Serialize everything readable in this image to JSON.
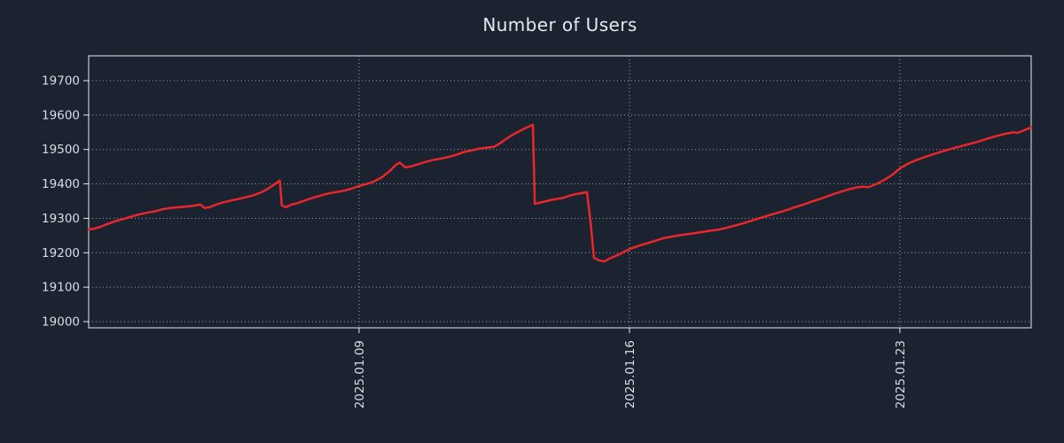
{
  "chart_data": {
    "type": "line",
    "title": "Number of Users",
    "xlabel": "",
    "ylabel": "",
    "legend": "none",
    "grid": "dotted",
    "x_unit": "day of month, January 2025",
    "x_range": [
      2.0,
      26.4
    ],
    "y_range": [
      18982,
      19772
    ],
    "x_ticks": [
      {
        "day": 9,
        "label": "2025.01.09"
      },
      {
        "day": 16,
        "label": "2025.01.16"
      },
      {
        "day": 23,
        "label": "2025.01.23"
      }
    ],
    "y_ticks": [
      {
        "value": 19000,
        "label": "19000"
      },
      {
        "value": 19100,
        "label": "19100"
      },
      {
        "value": 19200,
        "label": "19200"
      },
      {
        "value": 19300,
        "label": "19300"
      },
      {
        "value": 19400,
        "label": "19400"
      },
      {
        "value": 19500,
        "label": "19500"
      },
      {
        "value": 19600,
        "label": "19600"
      },
      {
        "value": 19700,
        "label": "19700"
      }
    ],
    "colors": {
      "background": "#1b2330",
      "axis": "#e7eaee",
      "grid": "#9aa2ad",
      "tick_text": "#d9dee6",
      "title_text": "#e4e8ee",
      "line": "#e8262b"
    },
    "series": [
      {
        "name": "users",
        "color": "#e8262b",
        "points": [
          [
            2.0,
            19268
          ],
          [
            2.15,
            19270
          ],
          [
            2.3,
            19275
          ],
          [
            2.5,
            19284
          ],
          [
            2.7,
            19292
          ],
          [
            2.9,
            19298
          ],
          [
            3.1,
            19305
          ],
          [
            3.3,
            19311
          ],
          [
            3.5,
            19316
          ],
          [
            3.7,
            19320
          ],
          [
            3.9,
            19326
          ],
          [
            4.1,
            19330
          ],
          [
            4.3,
            19332
          ],
          [
            4.5,
            19334
          ],
          [
            4.7,
            19336
          ],
          [
            4.9,
            19340
          ],
          [
            5.0,
            19330
          ],
          [
            5.15,
            19333
          ],
          [
            5.3,
            19340
          ],
          [
            5.5,
            19347
          ],
          [
            5.7,
            19352
          ],
          [
            5.9,
            19357
          ],
          [
            6.1,
            19362
          ],
          [
            6.3,
            19368
          ],
          [
            6.5,
            19377
          ],
          [
            6.7,
            19390
          ],
          [
            6.85,
            19402
          ],
          [
            6.95,
            19410
          ],
          [
            7.0,
            19338
          ],
          [
            7.1,
            19332
          ],
          [
            7.25,
            19340
          ],
          [
            7.4,
            19344
          ],
          [
            7.55,
            19350
          ],
          [
            7.7,
            19356
          ],
          [
            7.85,
            19361
          ],
          [
            8.0,
            19366
          ],
          [
            8.2,
            19372
          ],
          [
            8.4,
            19376
          ],
          [
            8.6,
            19380
          ],
          [
            8.8,
            19386
          ],
          [
            9.0,
            19394
          ],
          [
            9.2,
            19400
          ],
          [
            9.4,
            19408
          ],
          [
            9.6,
            19420
          ],
          [
            9.8,
            19438
          ],
          [
            9.95,
            19455
          ],
          [
            10.05,
            19462
          ],
          [
            10.2,
            19448
          ],
          [
            10.35,
            19451
          ],
          [
            10.5,
            19456
          ],
          [
            10.7,
            19463
          ],
          [
            10.9,
            19469
          ],
          [
            11.1,
            19473
          ],
          [
            11.3,
            19478
          ],
          [
            11.5,
            19484
          ],
          [
            11.7,
            19492
          ],
          [
            11.9,
            19497
          ],
          [
            12.1,
            19502
          ],
          [
            12.3,
            19505
          ],
          [
            12.5,
            19508
          ],
          [
            12.65,
            19518
          ],
          [
            12.8,
            19530
          ],
          [
            13.0,
            19544
          ],
          [
            13.2,
            19556
          ],
          [
            13.35,
            19564
          ],
          [
            13.5,
            19572
          ],
          [
            13.55,
            19342
          ],
          [
            13.7,
            19346
          ],
          [
            13.85,
            19350
          ],
          [
            14.0,
            19354
          ],
          [
            14.15,
            19357
          ],
          [
            14.3,
            19360
          ],
          [
            14.45,
            19366
          ],
          [
            14.6,
            19370
          ],
          [
            14.75,
            19373
          ],
          [
            14.9,
            19376
          ],
          [
            15.0,
            19280
          ],
          [
            15.08,
            19186
          ],
          [
            15.2,
            19178
          ],
          [
            15.35,
            19175
          ],
          [
            15.5,
            19184
          ],
          [
            15.65,
            19191
          ],
          [
            15.8,
            19199
          ],
          [
            15.95,
            19208
          ],
          [
            16.1,
            19215
          ],
          [
            16.3,
            19222
          ],
          [
            16.5,
            19229
          ],
          [
            16.7,
            19236
          ],
          [
            16.9,
            19243
          ],
          [
            17.1,
            19247
          ],
          [
            17.3,
            19251
          ],
          [
            17.5,
            19254
          ],
          [
            17.7,
            19257
          ],
          [
            17.9,
            19261
          ],
          [
            18.1,
            19264
          ],
          [
            18.3,
            19267
          ],
          [
            18.5,
            19272
          ],
          [
            18.7,
            19278
          ],
          [
            18.9,
            19284
          ],
          [
            19.1,
            19291
          ],
          [
            19.3,
            19298
          ],
          [
            19.5,
            19305
          ],
          [
            19.7,
            19312
          ],
          [
            19.9,
            19318
          ],
          [
            20.1,
            19325
          ],
          [
            20.3,
            19333
          ],
          [
            20.5,
            19340
          ],
          [
            20.7,
            19348
          ],
          [
            20.9,
            19355
          ],
          [
            21.1,
            19363
          ],
          [
            21.3,
            19371
          ],
          [
            21.5,
            19378
          ],
          [
            21.7,
            19385
          ],
          [
            21.9,
            19390
          ],
          [
            22.05,
            19392
          ],
          [
            22.2,
            19391
          ],
          [
            22.4,
            19400
          ],
          [
            22.6,
            19412
          ],
          [
            22.8,
            19426
          ],
          [
            23.0,
            19445
          ],
          [
            23.2,
            19458
          ],
          [
            23.4,
            19468
          ],
          [
            23.6,
            19476
          ],
          [
            23.8,
            19484
          ],
          [
            24.0,
            19491
          ],
          [
            24.2,
            19498
          ],
          [
            24.4,
            19504
          ],
          [
            24.6,
            19510
          ],
          [
            24.8,
            19516
          ],
          [
            25.0,
            19522
          ],
          [
            25.2,
            19529
          ],
          [
            25.4,
            19536
          ],
          [
            25.6,
            19542
          ],
          [
            25.8,
            19547
          ],
          [
            25.95,
            19550
          ],
          [
            26.05,
            19548
          ],
          [
            26.2,
            19555
          ],
          [
            26.4,
            19564
          ]
        ]
      }
    ]
  }
}
